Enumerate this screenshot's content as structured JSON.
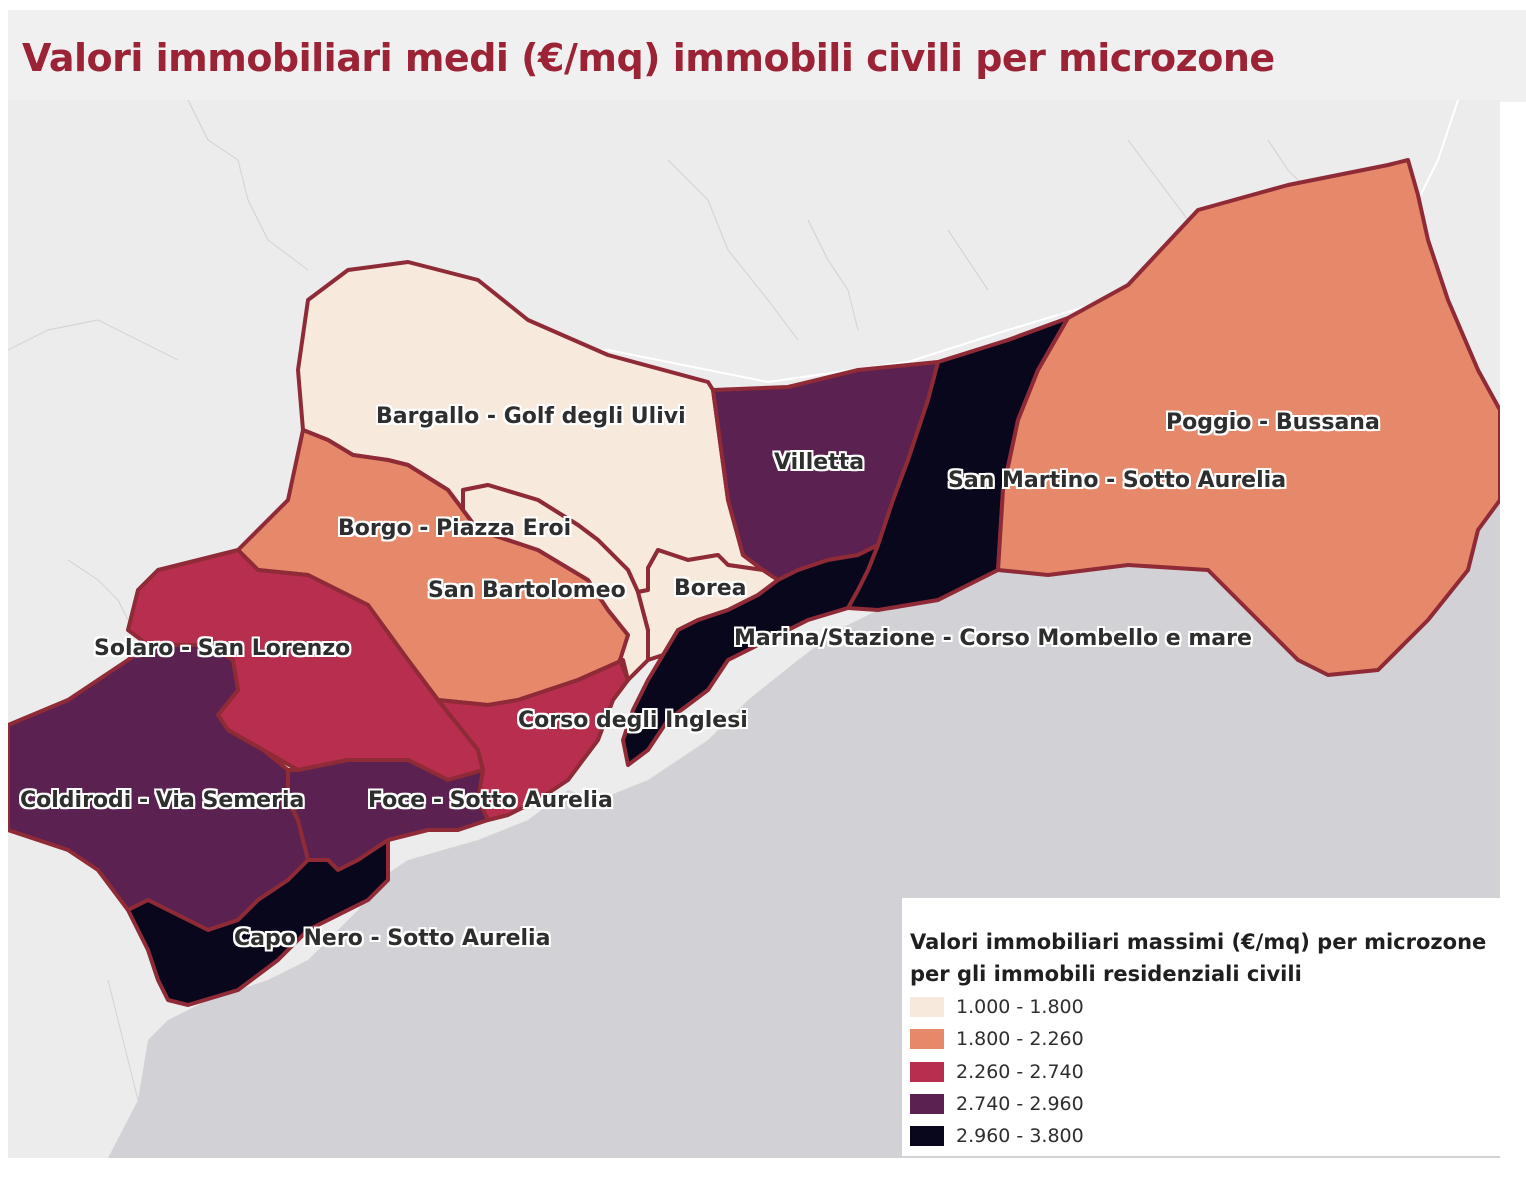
{
  "title": "Valori immobiliari medi (€/mq) immobili civili per microzone",
  "zones": [
    {
      "id": "bargallo",
      "label": "Bargallo - Golf degli Ulivi",
      "class": 0
    },
    {
      "id": "borgo",
      "label": "Borgo - Piazza Eroi",
      "class": 1
    },
    {
      "id": "san-bartolomeo",
      "label": "San Bartolomeo",
      "class": 1
    },
    {
      "id": "borea",
      "label": "Borea",
      "class": 0
    },
    {
      "id": "villetta",
      "label": "Villetta",
      "class": 3
    },
    {
      "id": "san-martino",
      "label": "San Martino - Sotto Aurelia",
      "class": 4
    },
    {
      "id": "poggio",
      "label": "Poggio - Bussana",
      "class": 1
    },
    {
      "id": "marina",
      "label": "Marina/Stazione - Corso Mombello e mare",
      "class": 4
    },
    {
      "id": "solaro",
      "label": "Solaro - San Lorenzo",
      "class": 2
    },
    {
      "id": "corso-inglesi",
      "label": "Corso degli Inglesi",
      "class": 2
    },
    {
      "id": "coldirodi",
      "label": "Coldirodi - Via Semeria",
      "class": 3
    },
    {
      "id": "foce",
      "label": "Foce - Sotto Aurelia",
      "class": 3
    },
    {
      "id": "capo-nero",
      "label": "Capo Nero - Sotto Aurelia",
      "class": 4
    }
  ],
  "legend": {
    "title": "Valori immobiliari massimi (€/mq) per microzone per gli immobili residenziali civili",
    "items": [
      {
        "label": "1.000 - 1.800",
        "color": "#f7e9dc"
      },
      {
        "label": "1.800 - 2.260",
        "color": "#e5896a"
      },
      {
        "label": "2.260 - 2.740",
        "color": "#b82e4e"
      },
      {
        "label": "2.740 - 2.960",
        "color": "#5b2150"
      },
      {
        "label": "2.960 - 3.800",
        "color": "#08071c"
      }
    ]
  },
  "colors": {
    "land": "#ececec",
    "sea": "#d2d2d6",
    "border": "#8f2a37",
    "title": "#9b2335"
  }
}
